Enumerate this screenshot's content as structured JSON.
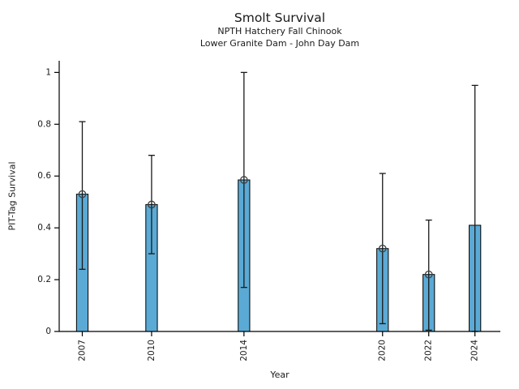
{
  "chart_data": {
    "type": "bar",
    "title": "Smolt Survival",
    "subtitle1": "NPTH Hatchery Fall Chinook",
    "subtitle2": "Lower Granite Dam - John Day Dam",
    "xlabel": "Year",
    "ylabel": "PIT-Tag Survival",
    "categories": [
      "2007",
      "2010",
      "2014",
      "2020",
      "2022",
      "2024"
    ],
    "x": [
      2007,
      2010,
      2014,
      2020,
      2022,
      2024
    ],
    "values": [
      0.53,
      0.49,
      0.585,
      0.32,
      0.22,
      0.41
    ],
    "error_low": [
      0.24,
      0.3,
      0.17,
      0.03,
      0.005,
      0.0
    ],
    "error_high": [
      0.81,
      0.68,
      1.0,
      0.61,
      0.43,
      0.95
    ],
    "markers": [
      true,
      true,
      true,
      true,
      true,
      false
    ],
    "xlim": [
      2006.0,
      2025.1
    ],
    "ylim": [
      0,
      1.045
    ],
    "yticks": [
      0,
      0.2,
      0.4,
      0.6,
      0.8,
      1
    ],
    "ytick_labels": [
      "0",
      "0.2",
      "0.4",
      "0.6",
      "0.8",
      "1"
    ],
    "bar_width_years": 0.5,
    "grid": false,
    "legend": "none",
    "bar_color": "#5aaad5",
    "bar_edge_color": "#000000",
    "error_color": "#1a1a1a",
    "marker_edge_color": "#3d3d3d",
    "spine_color": "#000000",
    "text_color": "#1a1a1a"
  }
}
